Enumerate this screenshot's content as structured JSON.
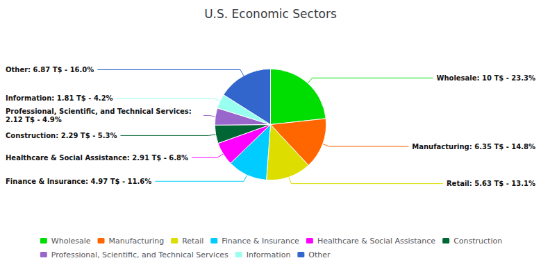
{
  "chart_data": {
    "type": "pie",
    "title": "U.S. Economic Sectors",
    "categories": [
      "Wholesale",
      "Manufacturing",
      "Retail",
      "Finance & Insurance",
      "Healthcare & Social Assistance",
      "Construction",
      "Professional, Scientific, and Technical Services",
      "Information",
      "Other"
    ],
    "values": [
      10.0,
      6.35,
      5.63,
      4.97,
      2.91,
      2.29,
      2.12,
      1.81,
      6.87
    ],
    "value_labels": [
      "Wholesale: 10 T$ - 23.3%",
      "Manufacturing: 6.35 T$ - 14.8%",
      "Retail: 5.63 T$ - 13.1%",
      "Finance & Insurance: 4.97 T$ - 11.6%",
      "Healthcare & Social Assistance: 2.91 T$ - 6.8%",
      "Construction: 2.29 T$ - 5.3%",
      "Professional, Scientific, and Technical Services: 2.12 T$ - 4.9%",
      "Information: 1.81 T$ - 4.2%",
      "Other: 6.87 T$ - 16.0%"
    ],
    "colors": [
      "#00dd00",
      "#ff6600",
      "#dddd00",
      "#00ccff",
      "#ff00ff",
      "#006633",
      "#9966cc",
      "#99ffee",
      "#3366cc"
    ],
    "data_labels": true,
    "legend": "bottom"
  }
}
